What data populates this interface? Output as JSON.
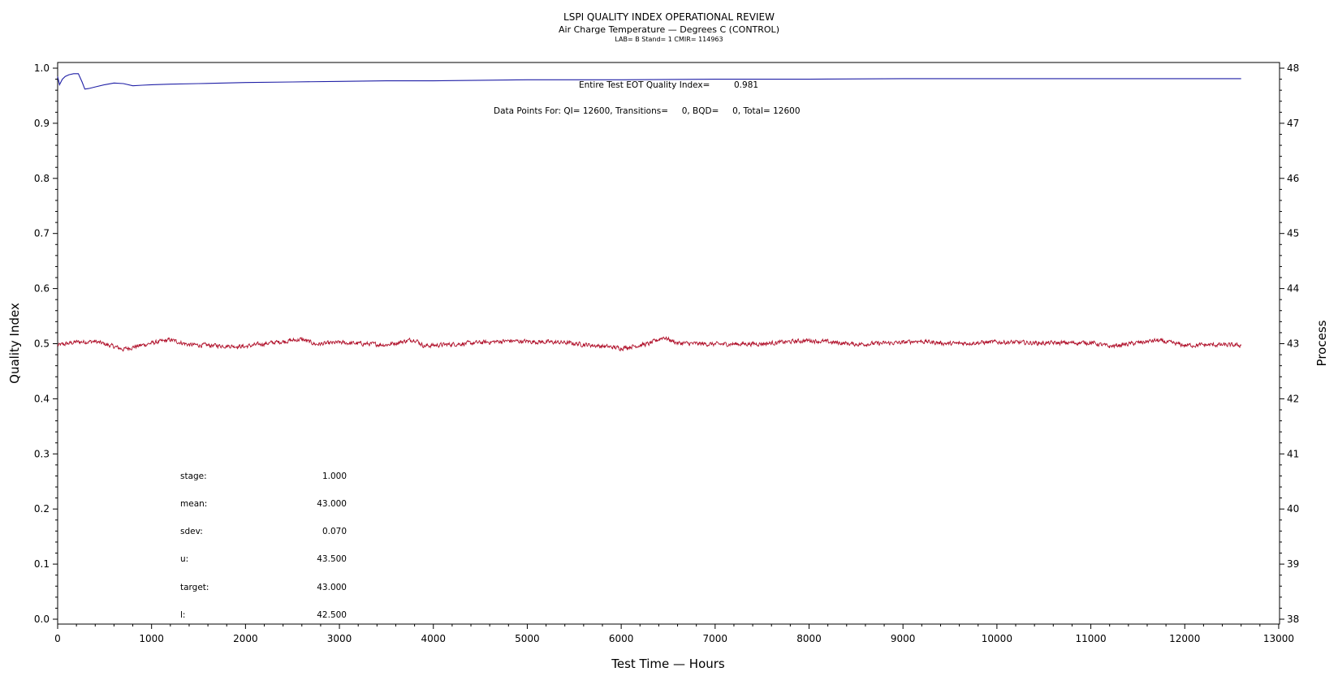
{
  "chart_data": {
    "type": "line",
    "title": "LSPI QUALITY INDEX OPERATIONAL REVIEW",
    "subtitle": "Air Charge Temperature — Degrees C (CONTROL)",
    "subtitle2": "LAB= B Stand= 1 CMIR= 114963",
    "xlabel": "Test Time — Hours",
    "ylabel": "Quality Index",
    "y2label": "Process",
    "xlim": [
      0,
      13000
    ],
    "ylim": [
      0.0,
      1.0
    ],
    "y2lim": [
      38,
      48
    ],
    "x_ticks": [
      "0",
      "1000",
      "2000",
      "3000",
      "4000",
      "5000",
      "6000",
      "7000",
      "8000",
      "9000",
      "10000",
      "11000",
      "12000",
      "13000"
    ],
    "y_ticks": [
      "0.0",
      "0.1",
      "0.2",
      "0.3",
      "0.4",
      "0.5",
      "0.6",
      "0.7",
      "0.8",
      "0.9",
      "1.0"
    ],
    "y2_ticks": [
      "38",
      "39",
      "40",
      "41",
      "42",
      "43",
      "44",
      "45",
      "46",
      "47",
      "48"
    ],
    "colors": {
      "quality_index": "#1f1fa6",
      "process": "#b0102a"
    },
    "annotations": {
      "eot_label": "Entire Test EOT Quality Index=",
      "eot_value": "0.981",
      "data_points": "Data Points For: QI= 12600, Transitions=     0, BQD=     0, Total= 12600"
    },
    "stats": [
      {
        "label": "stage:",
        "value": "1.000"
      },
      {
        "label": "mean:",
        "value": "43.000"
      },
      {
        "label": "sdev:",
        "value": "0.070"
      },
      {
        "label": "u:",
        "value": "43.500"
      },
      {
        "label": "target:",
        "value": "43.000"
      },
      {
        "label": "l:",
        "value": "42.500"
      }
    ],
    "series": [
      {
        "axis": "left",
        "x": [
          0,
          20,
          50,
          80,
          120,
          170,
          220,
          260,
          290,
          330,
          400,
          500,
          600,
          700,
          800,
          900,
          1000,
          1200,
          1500,
          2000,
          2500,
          3000,
          3500,
          4000,
          4500,
          5000,
          6000,
          7000,
          8000,
          9000,
          10000,
          11000,
          12000,
          12600
        ],
        "values": [
          0.985,
          0.97,
          0.98,
          0.985,
          0.988,
          0.99,
          0.99,
          0.975,
          0.962,
          0.963,
          0.966,
          0.97,
          0.973,
          0.972,
          0.968,
          0.969,
          0.97,
          0.971,
          0.972,
          0.974,
          0.975,
          0.976,
          0.977,
          0.977,
          0.978,
          0.979,
          0.979,
          0.98,
          0.98,
          0.981,
          0.981,
          0.981,
          0.981,
          0.981
        ]
      },
      {
        "axis": "right",
        "x": [
          0,
          200,
          400,
          700,
          1000,
          1200,
          1400,
          2000,
          2200,
          2600,
          2750,
          3000,
          3500,
          3800,
          3900,
          4200,
          4800,
          5400,
          6000,
          6300,
          6450,
          6600,
          7000,
          7500,
          8000,
          8500,
          9000,
          9150,
          9500,
          10000,
          10500,
          11000,
          11200,
          11700,
          12000,
          12300,
          12600
        ],
        "values": [
          42.97,
          43.03,
          43.04,
          42.9,
          43.01,
          43.07,
          42.98,
          42.95,
          43.0,
          43.08,
          42.99,
          43.02,
          42.98,
          43.08,
          42.96,
          42.99,
          43.05,
          43.02,
          42.92,
          43.0,
          43.12,
          43.01,
          42.99,
          43.0,
          43.06,
          42.99,
          43.02,
          43.05,
          43.0,
          43.03,
          43.01,
          43.02,
          42.95,
          43.06,
          42.97,
          42.98,
          42.97
        ],
        "noise_amplitude": 0.06
      }
    ]
  }
}
